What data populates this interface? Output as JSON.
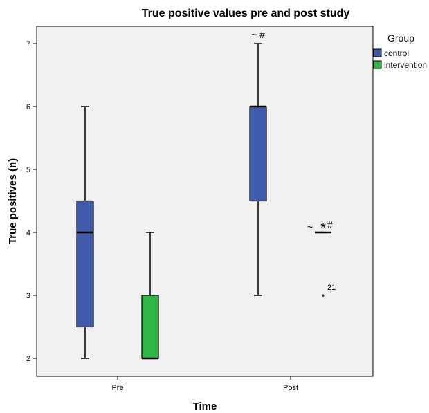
{
  "chart_data": {
    "type": "boxplot",
    "title": "True positive values pre and post study",
    "xlabel": "Time",
    "ylabel": "True positives (n)",
    "categories": [
      "Pre",
      "Post"
    ],
    "ylim": [
      1.7,
      7.3
    ],
    "yticks": [
      2,
      3,
      4,
      5,
      6,
      7
    ],
    "grid": false,
    "legend": {
      "title": "Group",
      "position": "right"
    },
    "series": [
      {
        "name": "control",
        "color": "#3f5aab",
        "boxes": [
          {
            "category": "Pre",
            "min": 2,
            "q1": 2.5,
            "median": 4,
            "q3": 4.5,
            "max": 6
          },
          {
            "category": "Post",
            "min": 3,
            "q1": 4.5,
            "median": 6,
            "q3": 6,
            "max": 7,
            "annotation": "~ #"
          }
        ]
      },
      {
        "name": "intervention",
        "color": "#2fb845",
        "boxes": [
          {
            "category": "Pre",
            "min": 2,
            "q1": 2,
            "median": 2,
            "q3": 3,
            "max": 4
          },
          {
            "category": "Post",
            "min": 4,
            "q1": 4,
            "median": 4,
            "q3": 4,
            "max": 4,
            "annotation_left": "~",
            "annotation_right": "#",
            "outliers": [
              {
                "value": 4,
                "marker": "*"
              },
              {
                "value": 3,
                "marker": "*",
                "label": "21"
              }
            ]
          }
        ]
      }
    ]
  }
}
